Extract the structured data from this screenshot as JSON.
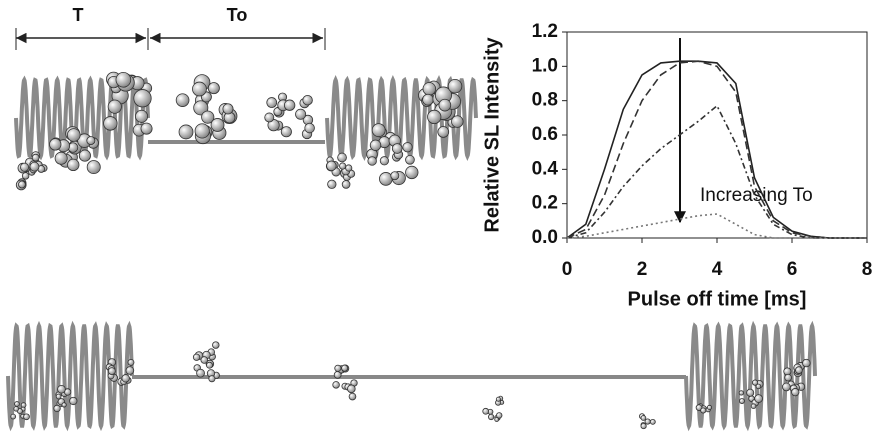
{
  "diagram": {
    "period_label": "T",
    "off_label": "To"
  },
  "chart_data": {
    "type": "line",
    "xlabel": "Pulse off time [ms]",
    "ylabel": "Relative SL Intensity",
    "annotation": "Increasing To",
    "x": [
      0,
      0.5,
      1,
      1.5,
      2,
      2.5,
      3,
      3.5,
      4,
      4.5,
      5,
      5.5,
      6,
      6.5,
      7,
      7.5,
      8
    ],
    "series": [
      {
        "color": "#222222",
        "style": "solid",
        "values": [
          0,
          0.08,
          0.4,
          0.75,
          0.95,
          1.02,
          1.03,
          1.03,
          1.02,
          0.9,
          0.35,
          0.12,
          0.04,
          0.01,
          0,
          0,
          0
        ]
      },
      {
        "color": "#333333",
        "style": "dashed",
        "values": [
          0,
          0.05,
          0.25,
          0.55,
          0.8,
          0.95,
          1.02,
          1.03,
          1.0,
          0.85,
          0.3,
          0.1,
          0.03,
          0.01,
          0,
          0,
          0
        ]
      },
      {
        "color": "#333333",
        "style": "dashdot",
        "values": [
          0,
          0.03,
          0.15,
          0.3,
          0.42,
          0.52,
          0.6,
          0.68,
          0.77,
          0.55,
          0.25,
          0.08,
          0.02,
          0,
          0,
          0,
          0
        ]
      },
      {
        "color": "#777777",
        "style": "dotted",
        "values": [
          0,
          0.01,
          0.03,
          0.05,
          0.07,
          0.09,
          0.11,
          0.13,
          0.14,
          0.08,
          0.02,
          0,
          0,
          0,
          0,
          0,
          0
        ]
      }
    ],
    "xlim": [
      0,
      8
    ],
    "xticks": [
      0,
      2,
      4,
      6,
      8
    ],
    "ylim": [
      0,
      1.2
    ],
    "yticks": [
      {
        "value": 0,
        "label": "0.0"
      },
      0.2,
      0.4,
      0.6,
      0.8,
      {
        "value": 1,
        "label": "1.0"
      },
      {
        "value": 1.2,
        "label": "1.2"
      }
    ],
    "grid": false
  }
}
